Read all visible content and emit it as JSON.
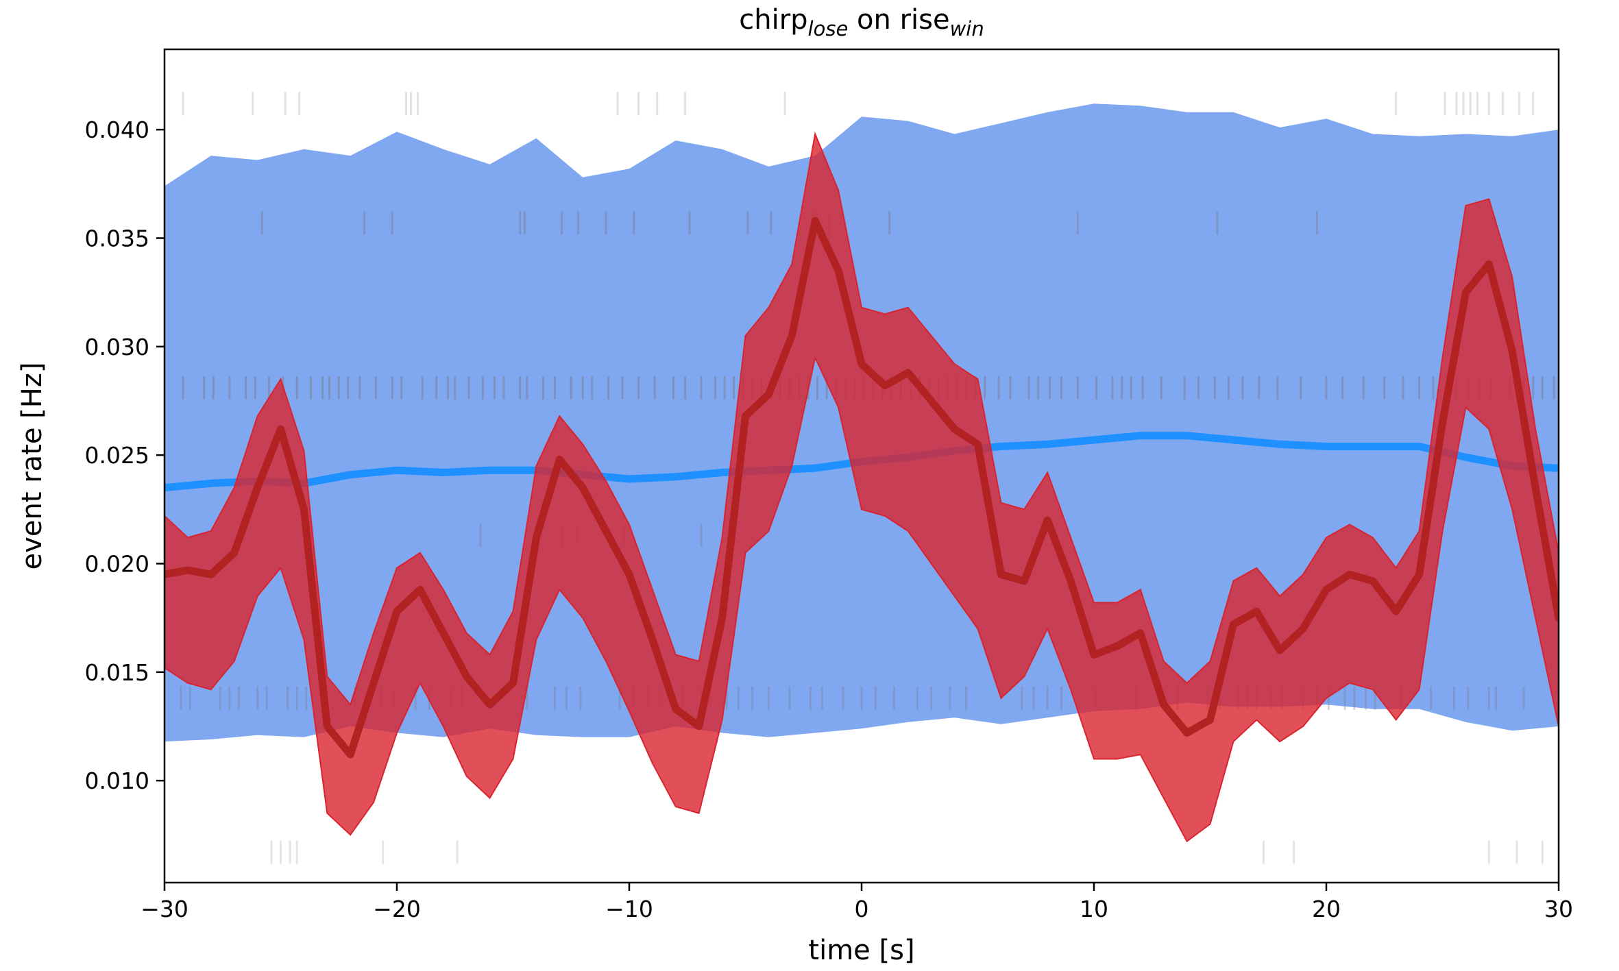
{
  "chart_data": {
    "type": "line",
    "title": "chirp",
    "title_sub1": "lose",
    "title_mid": " on rise",
    "title_sub2": "win",
    "xlabel": "time [s]",
    "ylabel": "event rate [Hz]",
    "xlim": [
      -30,
      30
    ],
    "ylim": [
      0.0053,
      0.0437
    ],
    "xticks": [
      -30,
      -20,
      -10,
      0,
      10,
      20,
      30
    ],
    "xtick_labels": [
      "−30",
      "−20",
      "−10",
      "0",
      "10",
      "20",
      "30"
    ],
    "yticks": [
      0.01,
      0.015,
      0.02,
      0.025,
      0.03,
      0.035,
      0.04
    ],
    "ytick_labels": [
      "0.010",
      "0.015",
      "0.020",
      "0.025",
      "0.030",
      "0.035",
      "0.040"
    ],
    "grid": false,
    "colors": {
      "blue_band": "#6495ED",
      "blue_line": "#1E90FF",
      "red_band": "#D9242E",
      "red_line": "#B22222",
      "events": "#B0B0B0"
    },
    "series": [
      {
        "role": "blue-median",
        "x": [
          -30,
          -28,
          -26,
          -24,
          -22,
          -20,
          -18,
          -16,
          -14,
          -12,
          -10,
          -8,
          -6,
          -4,
          -2,
          0,
          2,
          4,
          6,
          8,
          10,
          12,
          14,
          16,
          18,
          20,
          22,
          24,
          26,
          28,
          30
        ],
        "y": [
          0.0235,
          0.0237,
          0.0238,
          0.0237,
          0.0241,
          0.0243,
          0.0242,
          0.0243,
          0.0243,
          0.0241,
          0.0239,
          0.024,
          0.0242,
          0.0243,
          0.0244,
          0.0247,
          0.0249,
          0.0252,
          0.0254,
          0.0255,
          0.0257,
          0.0259,
          0.0259,
          0.0257,
          0.0255,
          0.0254,
          0.0254,
          0.0254,
          0.0249,
          0.0245,
          0.0244
        ]
      },
      {
        "role": "blue-band",
        "x": [
          -30,
          -28,
          -26,
          -24,
          -22,
          -20,
          -18,
          -16,
          -14,
          -12,
          -10,
          -8,
          -6,
          -4,
          -2,
          0,
          2,
          4,
          6,
          8,
          10,
          12,
          14,
          16,
          18,
          20,
          22,
          24,
          26,
          28,
          30
        ],
        "lower": [
          0.0118,
          0.0119,
          0.0121,
          0.012,
          0.0125,
          0.0122,
          0.012,
          0.0124,
          0.0121,
          0.012,
          0.012,
          0.0125,
          0.0122,
          0.012,
          0.0122,
          0.0124,
          0.0127,
          0.0129,
          0.0126,
          0.0129,
          0.0132,
          0.0133,
          0.0136,
          0.0134,
          0.0134,
          0.0135,
          0.0133,
          0.0133,
          0.0127,
          0.0123,
          0.0125
        ],
        "upper": [
          0.0374,
          0.0388,
          0.0386,
          0.0391,
          0.0388,
          0.0399,
          0.0391,
          0.0384,
          0.0396,
          0.0378,
          0.0382,
          0.0395,
          0.0391,
          0.0383,
          0.0388,
          0.0406,
          0.0404,
          0.0398,
          0.0403,
          0.0408,
          0.0412,
          0.0411,
          0.0408,
          0.0408,
          0.0401,
          0.0405,
          0.0398,
          0.0397,
          0.0398,
          0.0397,
          0.04
        ]
      },
      {
        "role": "red-mean",
        "x": [
          -30,
          -29,
          -28,
          -27,
          -26,
          -25,
          -24,
          -23,
          -22,
          -21,
          -20,
          -19,
          -18,
          -17,
          -16,
          -15,
          -14,
          -13,
          -12,
          -11,
          -10,
          -9,
          -8,
          -7,
          -6,
          -5,
          -4,
          -3,
          -2,
          -1,
          0,
          1,
          2,
          3,
          4,
          5,
          6,
          7,
          8,
          9,
          10,
          11,
          12,
          13,
          14,
          15,
          16,
          17,
          18,
          19,
          20,
          21,
          22,
          23,
          24,
          25,
          26,
          27,
          28,
          29,
          30
        ],
        "y": [
          0.0195,
          0.0197,
          0.0195,
          0.0205,
          0.0235,
          0.0262,
          0.0225,
          0.0125,
          0.0112,
          0.0145,
          0.0178,
          0.0188,
          0.0168,
          0.0148,
          0.0135,
          0.0145,
          0.0212,
          0.0248,
          0.0235,
          0.0215,
          0.0195,
          0.0165,
          0.0133,
          0.0125,
          0.0175,
          0.0268,
          0.0278,
          0.0305,
          0.0358,
          0.0335,
          0.0292,
          0.0282,
          0.0288,
          0.0275,
          0.0262,
          0.0255,
          0.0195,
          0.0192,
          0.022,
          0.0192,
          0.0158,
          0.0162,
          0.0168,
          0.0135,
          0.0122,
          0.0128,
          0.0172,
          0.0178,
          0.016,
          0.017,
          0.0188,
          0.0195,
          0.0192,
          0.0178,
          0.0195,
          0.0265,
          0.0325,
          0.0338,
          0.0298,
          0.0235,
          0.0175
        ]
      },
      {
        "role": "red-band",
        "x": [
          -30,
          -29,
          -28,
          -27,
          -26,
          -25,
          -24,
          -23,
          -22,
          -21,
          -20,
          -19,
          -18,
          -17,
          -16,
          -15,
          -14,
          -13,
          -12,
          -11,
          -10,
          -9,
          -8,
          -7,
          -6,
          -5,
          -4,
          -3,
          -2,
          -1,
          0,
          1,
          2,
          3,
          4,
          5,
          6,
          7,
          8,
          9,
          10,
          11,
          12,
          13,
          14,
          15,
          16,
          17,
          18,
          19,
          20,
          21,
          22,
          23,
          24,
          25,
          26,
          27,
          28,
          29,
          30
        ],
        "lower": [
          0.0152,
          0.0145,
          0.0142,
          0.0155,
          0.0185,
          0.0198,
          0.0165,
          0.0085,
          0.0075,
          0.009,
          0.0122,
          0.0145,
          0.0125,
          0.0102,
          0.0092,
          0.011,
          0.0165,
          0.0188,
          0.0175,
          0.0155,
          0.0132,
          0.0108,
          0.0088,
          0.0085,
          0.0128,
          0.0205,
          0.0215,
          0.0245,
          0.0295,
          0.0272,
          0.0225,
          0.0222,
          0.0215,
          0.02,
          0.0185,
          0.017,
          0.0138,
          0.0148,
          0.017,
          0.0142,
          0.011,
          0.011,
          0.0112,
          0.0092,
          0.0072,
          0.008,
          0.0118,
          0.0128,
          0.0118,
          0.0125,
          0.0138,
          0.0145,
          0.0142,
          0.0128,
          0.0142,
          0.0215,
          0.0272,
          0.0262,
          0.0225,
          0.0175,
          0.0125
        ],
        "upper": [
          0.0222,
          0.0212,
          0.0215,
          0.0235,
          0.0268,
          0.0285,
          0.0252,
          0.0148,
          0.0135,
          0.0168,
          0.0198,
          0.0205,
          0.0188,
          0.0168,
          0.0158,
          0.0178,
          0.0245,
          0.0268,
          0.0255,
          0.0238,
          0.0218,
          0.0188,
          0.0158,
          0.0155,
          0.0212,
          0.0305,
          0.0318,
          0.0338,
          0.0398,
          0.0372,
          0.0318,
          0.0315,
          0.0318,
          0.0305,
          0.0292,
          0.0285,
          0.0228,
          0.0225,
          0.0242,
          0.0212,
          0.0182,
          0.0182,
          0.0188,
          0.0155,
          0.0145,
          0.0155,
          0.0192,
          0.0198,
          0.0185,
          0.0195,
          0.0212,
          0.0218,
          0.0212,
          0.0198,
          0.0215,
          0.0295,
          0.0365,
          0.0368,
          0.0332,
          0.0262,
          0.0205
        ]
      }
    ],
    "event_rows": [
      {
        "y": 0.0412,
        "shade": 0.4,
        "times": [
          -29.2,
          -26.2,
          -24.8,
          -24.2,
          -19.6,
          -19.4,
          -19.1,
          -10.5,
          -9.6,
          -8.8,
          -7.6,
          -3.3,
          23.0,
          25.1,
          25.6,
          25.9,
          26.2,
          26.5,
          27.0,
          27.6,
          28.3,
          28.9
        ]
      },
      {
        "y": 0.0357,
        "shade": 0.75,
        "times": [
          -25.8,
          -21.4,
          -20.2,
          -14.7,
          -14.5,
          -12.9,
          -12.2,
          -11.0,
          -9.8,
          -7.4,
          -4.9,
          -3.9,
          -2.1,
          -1.9,
          -1.4,
          1.2,
          9.3,
          15.3,
          19.6
        ]
      },
      {
        "y": 0.0281,
        "shade": 0.85,
        "times": [
          -29.2,
          -28.3,
          -27.9,
          -27.2,
          -26.5,
          -26.1,
          -25.5,
          -24.9,
          -24.3,
          -23.7,
          -23.2,
          -22.9,
          -22.5,
          -22.1,
          -21.6,
          -20.9,
          -20.2,
          -19.8,
          -18.9,
          -18.3,
          -17.8,
          -17.5,
          -16.9,
          -16.3,
          -15.8,
          -15.4,
          -14.7,
          -14.4,
          -13.7,
          -13.2,
          -12.5,
          -12.0,
          -11.6,
          -10.9,
          -10.3,
          -9.6,
          -8.9,
          -8.1,
          -7.6,
          -6.9,
          -6.3,
          -5.9,
          -5.5,
          -5.1,
          -4.7,
          -4.3,
          -3.9,
          -3.5,
          -3.1,
          -2.7,
          -2.3,
          -1.9,
          -1.5,
          -1.1,
          -0.7,
          -0.3,
          0.1,
          0.5,
          0.9,
          1.3,
          1.7,
          2.1,
          2.5,
          2.9,
          3.3,
          3.7,
          4.1,
          4.5,
          4.9,
          5.3,
          5.9,
          6.4,
          7.2,
          7.6,
          8.1,
          8.6,
          9.3,
          10.1,
          10.8,
          11.2,
          11.6,
          12.1,
          12.9,
          13.9,
          14.5,
          15.2,
          15.8,
          16.4,
          17.1,
          17.9,
          18.9,
          20.0,
          20.7,
          21.6,
          22.5,
          23.3,
          24.0,
          24.6,
          25.2,
          25.6,
          26.1,
          26.6,
          27.1,
          27.9,
          28.5,
          28.9,
          29.3,
          29.8
        ]
      },
      {
        "y": 0.0213,
        "shade": 0.6,
        "times": [
          -16.4,
          -13.9,
          -12.9,
          -12.3,
          -10.2,
          -6.9
        ]
      },
      {
        "y": 0.0138,
        "shade": 0.6,
        "times": [
          -29.3,
          -28.9,
          -27.6,
          -27.2,
          -26.8,
          -26.0,
          -25.6,
          -24.7,
          -24.3,
          -23.9,
          -23.1,
          -21.8,
          -20.7,
          -20.1,
          -19.2,
          -18.6,
          -17.7,
          -17.2,
          -14.4,
          -13.2,
          -12.7,
          -12.1,
          -10.4,
          -9.8,
          -9.2,
          -8.6,
          -7.7,
          -6.9,
          -6.5,
          -5.8,
          -5.3,
          -4.7,
          -4.0,
          -3.1,
          -2.2,
          -1.7,
          -0.8,
          0.0,
          0.6,
          1.4,
          2.4,
          3.0,
          3.8,
          4.5,
          6.9,
          7.4,
          8.0,
          8.6,
          10.1,
          11.8,
          13.6,
          14.9,
          15.4,
          16.2,
          16.6,
          17.0,
          17.6,
          18.1,
          19.0,
          19.6,
          20.1,
          20.8,
          21.2,
          21.7,
          22.1,
          23.2,
          24.5,
          25.5,
          26.1,
          27.0,
          27.3,
          28.5
        ]
      },
      {
        "y": 0.0067,
        "shade": 0.35,
        "times": [
          -25.4,
          -25.0,
          -24.6,
          -24.3,
          -20.6,
          -17.4,
          17.3,
          18.6,
          27.0,
          28.2,
          29.3
        ]
      }
    ]
  }
}
